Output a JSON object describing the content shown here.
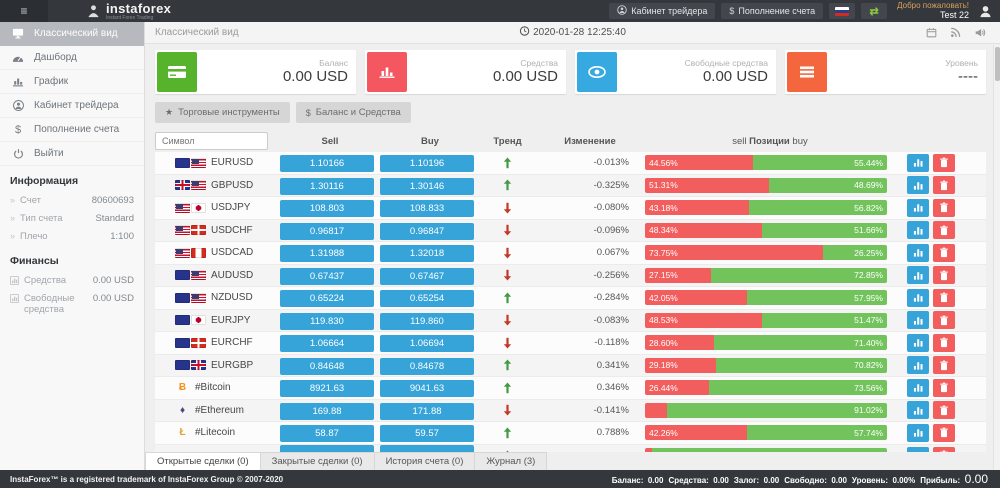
{
  "topbar": {
    "brand": "instaforex",
    "brand_sub": "Instant Forex Trading",
    "cabinet_button": "Кабинет трейдера",
    "deposit_button": "Пополнение счета",
    "deposit_glyph": "$",
    "welcome": "Добро пожаловать!",
    "username": "Test 22"
  },
  "sidebar": {
    "items": [
      {
        "label": "Классический вид",
        "icon": "desktop-icon",
        "active": true
      },
      {
        "label": "Дашборд",
        "icon": "dashboard-icon",
        "active": false
      },
      {
        "label": "График",
        "icon": "chart-icon",
        "active": false
      },
      {
        "label": "Кабинет трейдера",
        "icon": "user-icon",
        "active": false
      },
      {
        "label": "Пополнение счета",
        "icon": "dollar-icon",
        "active": false
      },
      {
        "label": "Выйти",
        "icon": "power-icon",
        "active": false
      }
    ],
    "info_title": "Информация",
    "info_rows": [
      {
        "label": "Счет",
        "value": "80600693"
      },
      {
        "label": "Тип счета",
        "value": "Standard"
      },
      {
        "label": "Плечо",
        "value": "1:100"
      }
    ],
    "finance_title": "Финансы",
    "finance_rows": [
      {
        "label": "Средства",
        "value": "0.00 USD",
        "icon": "mini-chart-icon"
      },
      {
        "label": "Свободные средства",
        "value": "0.00 USD",
        "icon": "mini-chart-icon"
      }
    ]
  },
  "header": {
    "title": "Классический вид",
    "datetime": "2020-01-28 12:25:40"
  },
  "cards": [
    {
      "label": "Баланс",
      "value": "0.00 USD",
      "color": "#58b32c",
      "icon": "credit-card-icon"
    },
    {
      "label": "Средства",
      "value": "0.00 USD",
      "color": "#f4575f",
      "icon": "bar-chart-icon"
    },
    {
      "label": "Свободные средства",
      "value": "0.00 USD",
      "color": "#36a9e1",
      "icon": "eye-icon"
    },
    {
      "label": "Уровень",
      "value": "----",
      "color": "#f4663e",
      "icon": "list-icon"
    }
  ],
  "toolbar": {
    "instruments_button": "Торговые инструменты",
    "instruments_glyph": "★",
    "balance_button": "Баланс и Средства",
    "balance_glyph": "$"
  },
  "table": {
    "search_placeholder": "Символ",
    "headers": {
      "sell": "Sell",
      "buy": "Buy",
      "trend": "Тренд",
      "change": "Изменение",
      "pos_left": "sell",
      "pos_mid": "Позиции",
      "pos_right": "buy"
    },
    "rows": [
      {
        "symbol": "EURUSD",
        "icons": [
          "flag-eu",
          "flag-us"
        ],
        "sell": "1.10166",
        "buy": "1.10196",
        "trend": "up",
        "change": "-0.013%",
        "sell_pct": 44.56,
        "sell_label": "44.56%",
        "buy_label": "55.44%"
      },
      {
        "symbol": "GBPUSD",
        "icons": [
          "flag-gb",
          "flag-us"
        ],
        "sell": "1.30116",
        "buy": "1.30146",
        "trend": "up",
        "change": "-0.325%",
        "sell_pct": 51.31,
        "sell_label": "51.31%",
        "buy_label": "48.69%"
      },
      {
        "symbol": "USDJPY",
        "icons": [
          "flag-us",
          "flag-jp"
        ],
        "sell": "108.803",
        "buy": "108.833",
        "trend": "down",
        "change": "-0.080%",
        "sell_pct": 43.18,
        "sell_label": "43.18%",
        "buy_label": "56.82%"
      },
      {
        "symbol": "USDCHF",
        "icons": [
          "flag-us",
          "flag-ch"
        ],
        "sell": "0.96817",
        "buy": "0.96847",
        "trend": "down",
        "change": "-0.096%",
        "sell_pct": 48.34,
        "sell_label": "48.34%",
        "buy_label": "51.66%"
      },
      {
        "symbol": "USDCAD",
        "icons": [
          "flag-us",
          "flag-ca"
        ],
        "sell": "1.31988",
        "buy": "1.32018",
        "trend": "down",
        "change": "0.067%",
        "sell_pct": 73.75,
        "sell_label": "73.75%",
        "buy_label": "26.25%"
      },
      {
        "symbol": "AUDUSD",
        "icons": [
          "flag-au",
          "flag-us"
        ],
        "sell": "0.67437",
        "buy": "0.67467",
        "trend": "down",
        "change": "-0.256%",
        "sell_pct": 27.15,
        "sell_label": "27.15%",
        "buy_label": "72.85%"
      },
      {
        "symbol": "NZDUSD",
        "icons": [
          "flag-nz",
          "flag-us"
        ],
        "sell": "0.65224",
        "buy": "0.65254",
        "trend": "up",
        "change": "-0.284%",
        "sell_pct": 42.05,
        "sell_label": "42.05%",
        "buy_label": "57.95%"
      },
      {
        "symbol": "EURJPY",
        "icons": [
          "flag-eu",
          "flag-jp"
        ],
        "sell": "119.830",
        "buy": "119.860",
        "trend": "down",
        "change": "-0.083%",
        "sell_pct": 48.53,
        "sell_label": "48.53%",
        "buy_label": "51.47%"
      },
      {
        "symbol": "EURCHF",
        "icons": [
          "flag-eu",
          "flag-ch"
        ],
        "sell": "1.06664",
        "buy": "1.06694",
        "trend": "down",
        "change": "-0.118%",
        "sell_pct": 28.6,
        "sell_label": "28.60%",
        "buy_label": "71.40%"
      },
      {
        "symbol": "EURGBP",
        "icons": [
          "flag-eu",
          "flag-gb"
        ],
        "sell": "0.84648",
        "buy": "0.84678",
        "trend": "up",
        "change": "0.341%",
        "sell_pct": 29.18,
        "sell_label": "29.18%",
        "buy_label": "70.82%"
      },
      {
        "symbol": "#Bitcoin",
        "icons": [
          "crypto-btc"
        ],
        "sell": "8921.63",
        "buy": "9041.63",
        "trend": "up",
        "change": "0.346%",
        "sell_pct": 26.44,
        "sell_label": "26.44%",
        "buy_label": "73.56%"
      },
      {
        "symbol": "#Ethereum",
        "icons": [
          "crypto-eth"
        ],
        "sell": "169.88",
        "buy": "171.88",
        "trend": "down",
        "change": "-0.141%",
        "sell_pct": 8.98,
        "sell_label": "",
        "buy_label": "91.02%"
      },
      {
        "symbol": "#Litecoin",
        "icons": [
          "crypto-ltc"
        ],
        "sell": "58.87",
        "buy": "59.57",
        "trend": "up",
        "change": "0.788%",
        "sell_pct": 42.26,
        "sell_label": "42.26%",
        "buy_label": "57.74%"
      },
      {
        "symbol": "",
        "icons": [],
        "sell": "",
        "buy": "",
        "trend": "up",
        "change": "",
        "sell_pct": 3,
        "sell_label": "",
        "buy_label": ""
      }
    ]
  },
  "tabs": [
    {
      "label": "Открытые сделки (0)",
      "active": true
    },
    {
      "label": "Закрытые сделки (0)",
      "active": false
    },
    {
      "label": "История счета (0)",
      "active": false
    },
    {
      "label": "Журнал (3)",
      "active": false
    }
  ],
  "footer": {
    "copyright": "InstaForex™ is a registered trademark of InstaForex Group © 2007-2020",
    "stats": [
      {
        "label": "Баланс:",
        "value": "0.00",
        "big": false
      },
      {
        "label": "Средства:",
        "value": "0.00",
        "big": false
      },
      {
        "label": "Залог:",
        "value": "0.00",
        "big": false
      },
      {
        "label": "Свободно:",
        "value": "0.00",
        "big": false
      },
      {
        "label": "Уровень:",
        "value": "0.00%",
        "big": false
      },
      {
        "label": "Прибыль:",
        "value": "0.00",
        "big": true
      }
    ]
  }
}
